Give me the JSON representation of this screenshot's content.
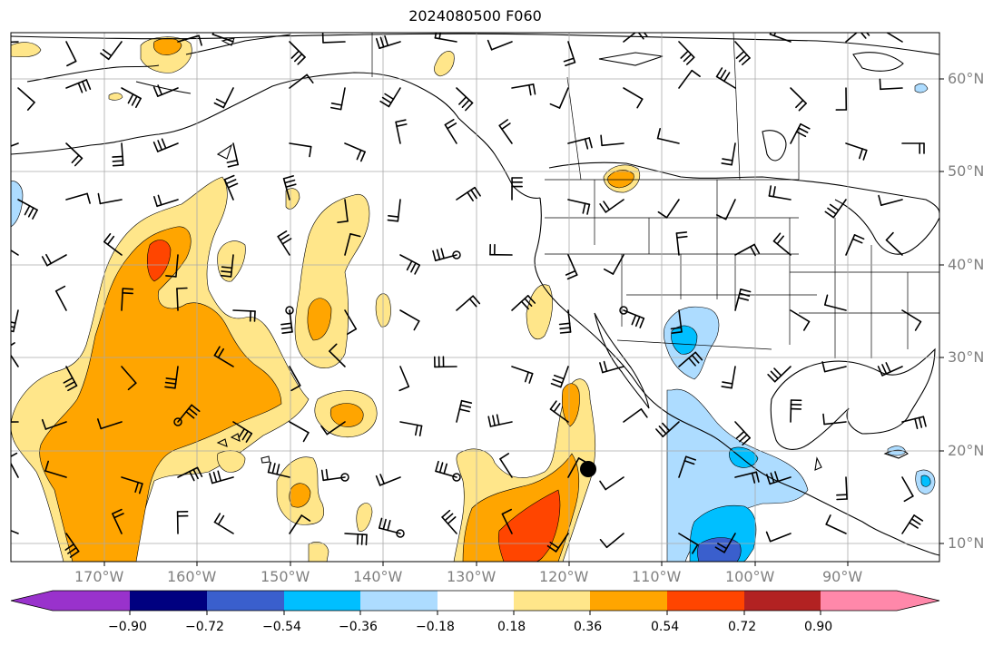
{
  "title": "2024080500 F060",
  "lat_labels": [
    "60°N",
    "50°N",
    "40°N",
    "30°N",
    "20°N",
    "10°N"
  ],
  "lon_labels": [
    "170°W",
    "160°W",
    "150°W",
    "140°W",
    "130°W",
    "120°W",
    "110°W",
    "100°W",
    "90°W"
  ],
  "colorbar": {
    "ticks": [
      "−0.90",
      "−0.72",
      "−0.54",
      "−0.36",
      "−0.18",
      "0.18",
      "0.36",
      "0.54",
      "0.72",
      "0.90"
    ],
    "colors": [
      "#9932CC",
      "#000080",
      "#3A5FCD",
      "#00BFFF",
      "#ADDCFF",
      "#FFFFFF",
      "#FFE68A",
      "#FFA500",
      "#FF4500",
      "#B22222",
      "#FF88AA"
    ]
  },
  "map": {
    "lon_range": [
      -178,
      -78
    ],
    "lat_range": [
      8,
      65
    ],
    "field_colors": {
      "pos_1": "#FFE68A",
      "pos_2": "#FFA500",
      "pos_3": "#FF4500",
      "neg_1": "#ADDCFF",
      "neg_2": "#00BFFF",
      "neg_3": "#3A5FCD"
    },
    "marker_icon": "black-dot-icon"
  }
}
